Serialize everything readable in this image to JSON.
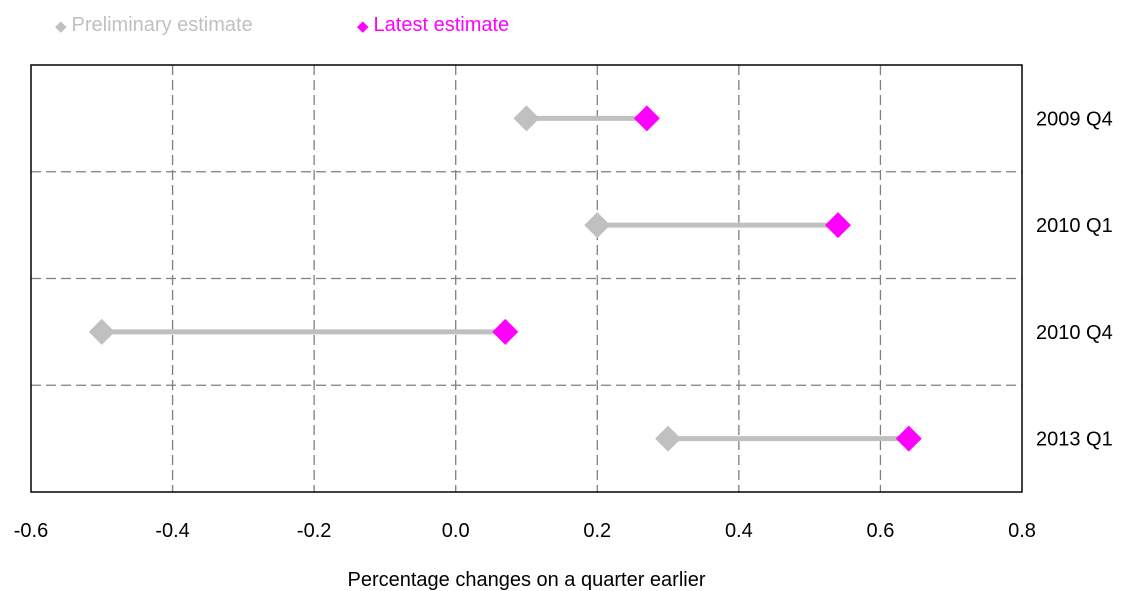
{
  "chart_data": {
    "type": "dumbbell",
    "orientation": "horizontal",
    "categories": [
      "2009 Q4",
      "2010 Q1",
      "2010 Q4",
      "2013 Q1"
    ],
    "series": [
      {
        "name": "Preliminary estimate",
        "color": "#c0c0c0",
        "values": [
          0.1,
          0.2,
          -0.5,
          0.3
        ]
      },
      {
        "name": "Latest estimate",
        "color": "#ff00ff",
        "values": [
          0.27,
          0.54,
          0.07,
          0.64
        ]
      }
    ],
    "xlabel": "Percentage changes on a quarter earlier",
    "xlim": [
      -0.6,
      0.8
    ],
    "xticks": [
      "-0.6",
      "-0.4",
      "-0.2",
      "0.0",
      "0.2",
      "0.4",
      "0.6",
      "0.8"
    ],
    "connector_color": "#c0c0c0",
    "grid": true,
    "grid_style": "dashed",
    "legend_position": "top-left",
    "marker": "diamond"
  }
}
